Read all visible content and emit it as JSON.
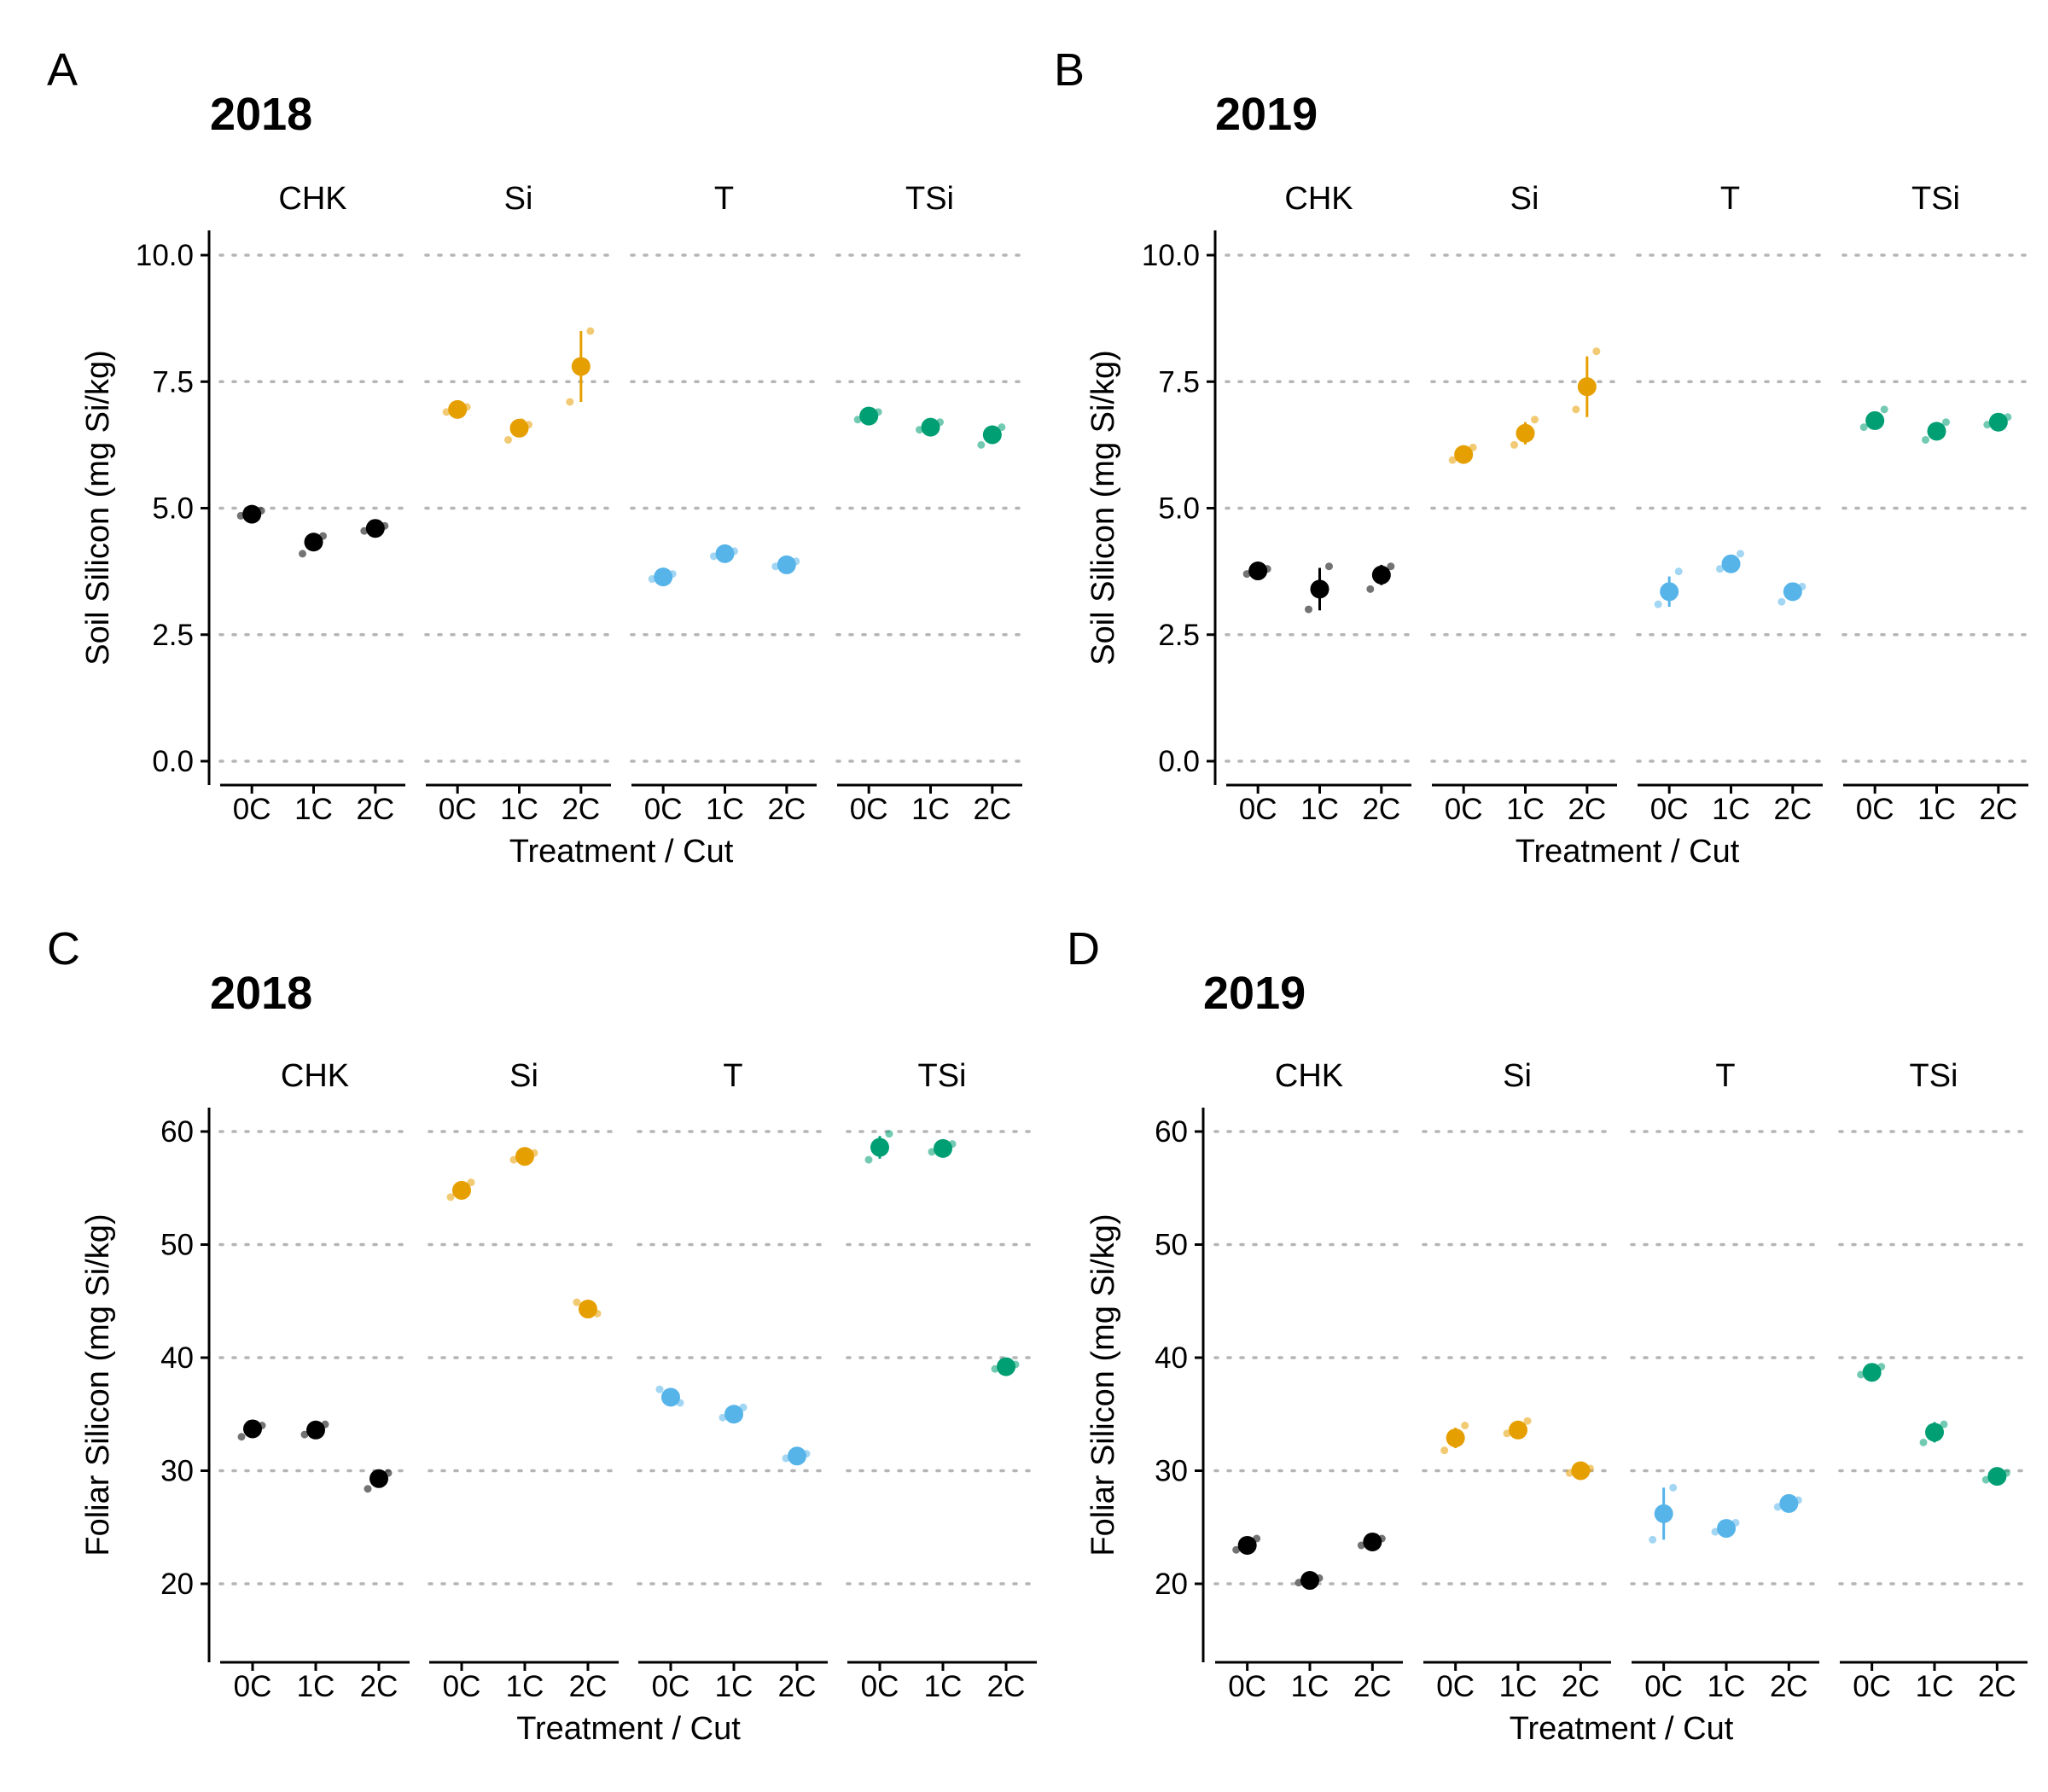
{
  "colors": {
    "CHK": "#000000",
    "Si": "#E69F00",
    "T": "#56B4E9",
    "TSi": "#009E73",
    "grid": "#b5b5b5"
  },
  "chart_data": [
    {
      "type": "scatter",
      "panel": "A",
      "title": "2018",
      "xlabel": "Treatment / Cut",
      "ylabel": "Soil Silicon (mg Si/kg)",
      "ylim": [
        0,
        10
      ],
      "yticks": [
        "0.0",
        "2.5",
        "5.0",
        "7.5",
        "10.0"
      ],
      "ytick_values": [
        0,
        2.5,
        5,
        7.5,
        10
      ],
      "facets": [
        "CHK",
        "Si",
        "T",
        "TSi"
      ],
      "cuts": [
        "0C",
        "1C",
        "2C"
      ],
      "grid": "horizontal dotted",
      "series": [
        {
          "facet": "CHK",
          "mean": [
            4.88,
            4.33,
            4.6
          ],
          "err": [
            0.08,
            0.15,
            0.06
          ],
          "points": [
            [
              4.85,
              4.95,
              4.8
            ],
            [
              4.1,
              4.45,
              4.35
            ],
            [
              4.55,
              4.65,
              4.6
            ]
          ]
        },
        {
          "facet": "Si",
          "mean": [
            6.95,
            6.58,
            7.8
          ],
          "err": [
            0.06,
            0.15,
            0.7
          ],
          "points": [
            [
              6.9,
              7.0,
              6.92
            ],
            [
              6.35,
              6.65,
              6.7
            ],
            [
              7.1,
              8.5,
              7.8
            ]
          ]
        },
        {
          "facet": "T",
          "mean": [
            3.64,
            4.1,
            3.88
          ],
          "err": [
            0.05,
            0.05,
            0.06
          ],
          "points": [
            [
              3.6,
              3.7,
              3.62
            ],
            [
              4.05,
              4.15,
              4.1
            ],
            [
              3.85,
              3.95,
              3.85
            ]
          ]
        },
        {
          "facet": "TSi",
          "mean": [
            6.82,
            6.6,
            6.45
          ],
          "err": [
            0.06,
            0.07,
            0.12
          ],
          "points": [
            [
              6.75,
              6.9,
              6.8
            ],
            [
              6.55,
              6.7,
              6.6
            ],
            [
              6.25,
              6.6,
              6.5
            ]
          ]
        }
      ]
    },
    {
      "type": "scatter",
      "panel": "B",
      "title": "2019",
      "xlabel": "Treatment / Cut",
      "ylabel": "Soil Silicon (mg Si/kg)",
      "ylim": [
        0,
        10
      ],
      "yticks": [
        "0.0",
        "2.5",
        "5.0",
        "7.5",
        "10.0"
      ],
      "ytick_values": [
        0,
        2.5,
        5,
        7.5,
        10
      ],
      "facets": [
        "CHK",
        "Si",
        "T",
        "TSi"
      ],
      "cuts": [
        "0C",
        "1C",
        "2C"
      ],
      "grid": "horizontal dotted",
      "series": [
        {
          "facet": "CHK",
          "mean": [
            3.76,
            3.4,
            3.68
          ],
          "err": [
            0.06,
            0.42,
            0.2
          ],
          "points": [
            [
              3.7,
              3.8,
              3.75
            ],
            [
              3.0,
              3.85,
              3.4
            ],
            [
              3.4,
              3.85,
              3.7
            ]
          ]
        },
        {
          "facet": "Si",
          "mean": [
            6.06,
            6.48,
            7.4
          ],
          "err": [
            0.12,
            0.22,
            0.6
          ],
          "points": [
            [
              5.95,
              6.2,
              6.05
            ],
            [
              6.25,
              6.75,
              6.45
            ],
            [
              6.95,
              8.1,
              7.3
            ]
          ]
        },
        {
          "facet": "T",
          "mean": [
            3.35,
            3.9,
            3.35
          ],
          "err": [
            0.3,
            0.12,
            0.12
          ],
          "points": [
            [
              3.1,
              3.75,
              3.25
            ],
            [
              3.8,
              4.1,
              3.85
            ],
            [
              3.15,
              3.45,
              3.35
            ]
          ]
        },
        {
          "facet": "TSi",
          "mean": [
            6.73,
            6.52,
            6.7
          ],
          "err": [
            0.1,
            0.1,
            0.07
          ],
          "points": [
            [
              6.6,
              6.95,
              6.7
            ],
            [
              6.35,
              6.7,
              6.5
            ],
            [
              6.65,
              6.8,
              6.7
            ]
          ]
        }
      ]
    },
    {
      "type": "scatter",
      "panel": "C",
      "title": "2018",
      "xlabel": "Treatment / Cut",
      "ylabel": "Foliar Silicon (mg Si/kg)",
      "ylim": [
        17.5,
        67
      ],
      "yticks": [
        "20",
        "30",
        "40",
        "50",
        "60"
      ],
      "ytick_values": [
        20,
        30,
        40,
        50,
        60
      ],
      "facets": [
        "CHK",
        "Si",
        "T",
        "TSi"
      ],
      "cuts": [
        "0C",
        "1C",
        "2C"
      ],
      "grid": "horizontal dotted",
      "series": [
        {
          "facet": "CHK",
          "mean": [
            33.7,
            33.6,
            29.3
          ],
          "err": [
            0.3,
            0.5,
            0.8
          ],
          "points": [
            [
              33.0,
              34.0,
              33.8
            ],
            [
              33.2,
              34.1,
              33.6
            ],
            [
              28.4,
              29.8,
              29.5
            ]
          ]
        },
        {
          "facet": "Si",
          "mean": [
            54.8,
            57.8,
            44.3
          ],
          "err": [
            0.6,
            0.3,
            0.4
          ],
          "points": [
            [
              54.2,
              55.5,
              54.9
            ],
            [
              57.5,
              58.1,
              57.8
            ],
            [
              44.9,
              43.9,
              44.3
            ]
          ]
        },
        {
          "facet": "T",
          "mean": [
            36.5,
            35.0,
            31.3
          ],
          "err": [
            0.5,
            0.4,
            0.2
          ],
          "points": [
            [
              37.2,
              36.0,
              36.5
            ],
            [
              34.7,
              35.6,
              35.0
            ],
            [
              31.1,
              31.5,
              31.3
            ]
          ]
        },
        {
          "facet": "TSi",
          "mean": [
            58.6,
            58.5,
            39.2
          ],
          "err": [
            1.0,
            0.3,
            0.2
          ],
          "points": [
            [
              57.5,
              59.8,
              58.6
            ],
            [
              58.2,
              58.9,
              58.5
            ],
            [
              39.0,
              39.4,
              39.2
            ]
          ]
        }
      ]
    },
    {
      "type": "scatter",
      "panel": "D",
      "title": "2019",
      "xlabel": "Treatment / Cut",
      "ylabel": "Foliar Silicon (mg Si/kg)",
      "ylim": [
        17.5,
        67
      ],
      "yticks": [
        "20",
        "30",
        "40",
        "50",
        "60"
      ],
      "ytick_values": [
        20,
        30,
        40,
        50,
        60
      ],
      "facets": [
        "CHK",
        "Si",
        "T",
        "TSi"
      ],
      "cuts": [
        "0C",
        "1C",
        "2C"
      ],
      "grid": "horizontal dotted",
      "series": [
        {
          "facet": "CHK",
          "mean": [
            23.4,
            20.3,
            23.7
          ],
          "err": [
            0.4,
            0.2,
            0.3
          ],
          "points": [
            [
              23.0,
              24.0,
              23.4
            ],
            [
              20.1,
              20.5,
              20.3
            ],
            [
              23.4,
              24.0,
              23.6
            ]
          ]
        },
        {
          "facet": "Si",
          "mean": [
            32.9,
            33.6,
            30.0
          ],
          "err": [
            0.9,
            0.4,
            0.3
          ],
          "points": [
            [
              31.8,
              34.0,
              33.0
            ],
            [
              33.3,
              34.4,
              33.6
            ],
            [
              29.8,
              30.2,
              30.0
            ]
          ]
        },
        {
          "facet": "T",
          "mean": [
            26.2,
            24.9,
            27.1
          ],
          "err": [
            2.3,
            0.4,
            0.3
          ],
          "points": [
            [
              23.9,
              28.5,
              26.2
            ],
            [
              24.6,
              25.4,
              24.9
            ],
            [
              26.8,
              27.4,
              27.1
            ]
          ]
        },
        {
          "facet": "TSi",
          "mean": [
            38.7,
            33.4,
            29.5
          ],
          "err": [
            0.3,
            0.9,
            0.3
          ],
          "points": [
            [
              38.5,
              39.2,
              38.7
            ],
            [
              32.5,
              34.1,
              33.4
            ],
            [
              29.2,
              29.8,
              29.5
            ]
          ]
        }
      ]
    }
  ]
}
